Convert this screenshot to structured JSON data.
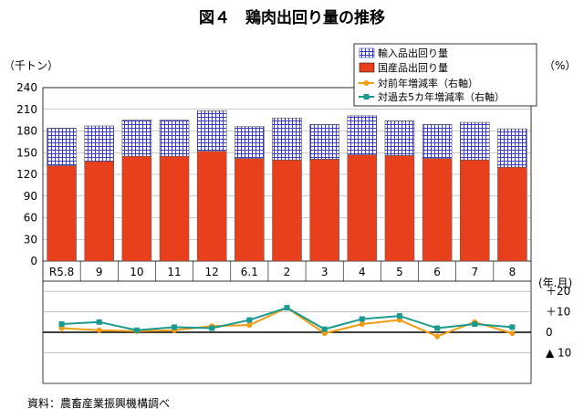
{
  "chart_data": {
    "title": "図４　鶏肉出回り量の推移",
    "source": "資料：農畜産業振興機構調べ",
    "categories": [
      "R5.8",
      "9",
      "10",
      "11",
      "12",
      "6.1",
      "2",
      "3",
      "4",
      "5",
      "6",
      "7",
      "8"
    ],
    "x_unit_label": "(年.月)",
    "top_panel": {
      "type": "bar",
      "stacked": true,
      "y_unit_label": "（千トン）",
      "right_unit_label": "（%）",
      "ylim": [
        0,
        240
      ],
      "yticks": [
        "240",
        "210",
        "180",
        "150",
        "120",
        "90",
        "60",
        "30",
        "0"
      ],
      "grid": true,
      "series": [
        {
          "name": "輸入品出回り量",
          "color": "#3a3ac8",
          "values": [
            52,
            49,
            50,
            50,
            56,
            44,
            58,
            48,
            54,
            48,
            47,
            52,
            53
          ]
        },
        {
          "name": "国産品出回り量",
          "color": "#e8401c",
          "values": [
            132,
            138,
            145,
            145,
            152,
            142,
            140,
            141,
            147,
            146,
            142,
            140,
            130
          ]
        }
      ]
    },
    "bottom_panel": {
      "type": "line",
      "ylim": [
        -25,
        25
      ],
      "yticks": [
        {
          "value": 20,
          "label": "＋20"
        },
        {
          "value": 10,
          "label": "＋10"
        },
        {
          "value": 0,
          "label": "0"
        },
        {
          "value": -10,
          "label": "▲ 10"
        }
      ],
      "grid": true,
      "series": [
        {
          "name": "対前年増減率（右軸）",
          "color": "#f39c12",
          "marker": "circle",
          "values": [
            2,
            1,
            0.5,
            1,
            3,
            3.5,
            12,
            -0.5,
            4,
            6,
            -2,
            5,
            -0.5
          ]
        },
        {
          "name": "対過去5カ年増減率（右軸）",
          "color": "#1a9a90",
          "marker": "square",
          "values": [
            4,
            5,
            1,
            2.5,
            2,
            6,
            12,
            1.5,
            6.5,
            8,
            2,
            4,
            2.5
          ]
        }
      ]
    },
    "legend_position": "top-right"
  }
}
